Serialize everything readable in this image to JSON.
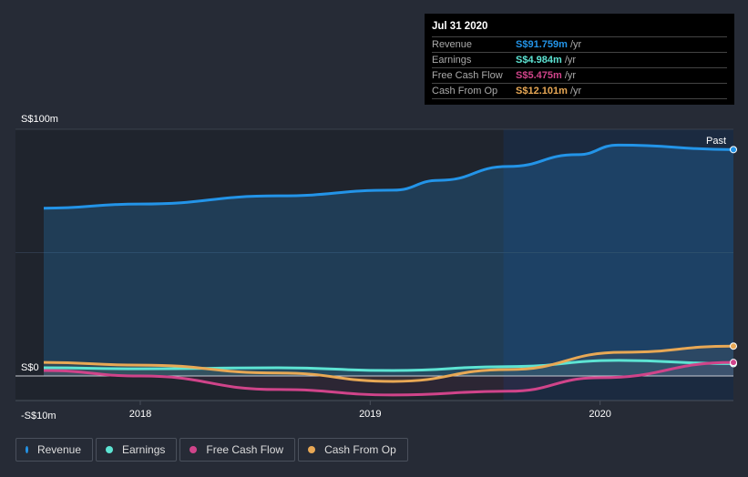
{
  "tooltip": {
    "date": "Jul 31 2020",
    "rows": [
      {
        "label": "Revenue",
        "value": "S$91.759m",
        "unit": " /yr",
        "color": "#2394e8"
      },
      {
        "label": "Earnings",
        "value": "S$4.984m",
        "unit": " /yr",
        "color": "#5de4d3"
      },
      {
        "label": "Free Cash Flow",
        "value": "S$5.475m",
        "unit": " /yr",
        "color": "#d0448a"
      },
      {
        "label": "Cash From Op",
        "value": "S$12.101m",
        "unit": " /yr",
        "color": "#e8a855"
      }
    ]
  },
  "chart_data": {
    "type": "line",
    "ylim": [
      -10,
      100
    ],
    "y_ticks": [
      {
        "v": 100,
        "label": "S$100m"
      },
      {
        "v": 0,
        "label": "S$0"
      },
      {
        "v": -10,
        "label": "-S$10m"
      }
    ],
    "x_ticks": [
      {
        "v": 2018,
        "label": "2018"
      },
      {
        "v": 2019,
        "label": "2019"
      },
      {
        "v": 2020,
        "label": "2020"
      }
    ],
    "xlim": [
      2017.58,
      2020.58
    ],
    "past_from": 2019.58,
    "past_label": "Past",
    "series": [
      {
        "name": "Revenue",
        "color": "#2394e8",
        "points": [
          [
            2017.58,
            68
          ],
          [
            2018,
            69.7
          ],
          [
            2018.6,
            73
          ],
          [
            2019.1,
            75.3
          ],
          [
            2019.3,
            79.3
          ],
          [
            2019.6,
            84.9
          ],
          [
            2019.9,
            89.7
          ],
          [
            2020.08,
            93.6
          ],
          [
            2020.58,
            91.76
          ]
        ]
      },
      {
        "name": "Earnings",
        "color": "#5de4d3",
        "points": [
          [
            2017.58,
            3.3
          ],
          [
            2018,
            2.9
          ],
          [
            2018.6,
            3.3
          ],
          [
            2019.1,
            2.2
          ],
          [
            2019.6,
            3.8
          ],
          [
            2020.08,
            6.3
          ],
          [
            2020.58,
            4.98
          ]
        ]
      },
      {
        "name": "Free Cash Flow",
        "color": "#d0448a",
        "points": [
          [
            2017.58,
            2.2
          ],
          [
            2018,
            0
          ],
          [
            2018.6,
            -5.5
          ],
          [
            2019.1,
            -7.7
          ],
          [
            2019.6,
            -6.2
          ],
          [
            2020,
            -0.7
          ],
          [
            2020.58,
            5.48
          ]
        ]
      },
      {
        "name": "Cash From Op",
        "color": "#e8a855",
        "points": [
          [
            2017.58,
            5.5
          ],
          [
            2018,
            4.4
          ],
          [
            2018.6,
            1.2
          ],
          [
            2019.1,
            -2.2
          ],
          [
            2019.6,
            2.6
          ],
          [
            2020.1,
            9.6
          ],
          [
            2020.58,
            12.1
          ]
        ]
      }
    ]
  }
}
